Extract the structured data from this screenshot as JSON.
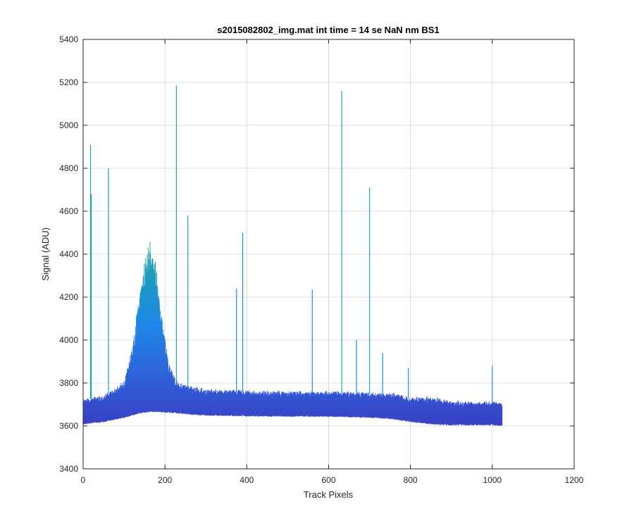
{
  "chart_data": {
    "type": "line",
    "title": "s2015082802_img.mat int time = 14 se  NaN nm BS1",
    "xlabel": "Track Pixels",
    "ylabel": "Signal (ADU)",
    "xlim": [
      0,
      1200
    ],
    "ylim": [
      3400,
      5400
    ],
    "xticks": [
      0,
      200,
      400,
      600,
      800,
      1000,
      1200
    ],
    "yticks": [
      3400,
      3600,
      3800,
      4000,
      4200,
      4400,
      4600,
      4800,
      5000,
      5200,
      5400
    ],
    "grid": true,
    "x_range": [
      1,
      1024
    ],
    "colors": {
      "series_low": "#3a3fc4",
      "series_mid": "#1e88e8",
      "series_high": "#1aa8a0",
      "grid": "#dcdcdc",
      "axis": "#262626"
    },
    "envelope": [
      {
        "x": 1,
        "low": 3615,
        "high": 3720
      },
      {
        "x": 50,
        "low": 3625,
        "high": 3735
      },
      {
        "x": 100,
        "low": 3645,
        "high": 3800
      },
      {
        "x": 120,
        "low": 3655,
        "high": 3960
      },
      {
        "x": 140,
        "low": 3665,
        "high": 4250
      },
      {
        "x": 155,
        "low": 3670,
        "high": 4420
      },
      {
        "x": 165,
        "low": 3672,
        "high": 4460
      },
      {
        "x": 180,
        "low": 3672,
        "high": 4350
      },
      {
        "x": 195,
        "low": 3670,
        "high": 4060
      },
      {
        "x": 210,
        "low": 3668,
        "high": 3880
      },
      {
        "x": 230,
        "low": 3665,
        "high": 3800
      },
      {
        "x": 260,
        "low": 3660,
        "high": 3780
      },
      {
        "x": 300,
        "low": 3655,
        "high": 3765
      },
      {
        "x": 400,
        "low": 3652,
        "high": 3760
      },
      {
        "x": 500,
        "low": 3650,
        "high": 3755
      },
      {
        "x": 600,
        "low": 3650,
        "high": 3755
      },
      {
        "x": 700,
        "low": 3645,
        "high": 3750
      },
      {
        "x": 760,
        "low": 3638,
        "high": 3745
      },
      {
        "x": 800,
        "low": 3625,
        "high": 3725
      },
      {
        "x": 850,
        "low": 3615,
        "high": 3730
      },
      {
        "x": 900,
        "low": 3610,
        "high": 3710
      },
      {
        "x": 1000,
        "low": 3610,
        "high": 3705
      },
      {
        "x": 1024,
        "low": 3608,
        "high": 3705
      }
    ],
    "spikes": [
      {
        "x": 18,
        "y": 4910
      },
      {
        "x": 20,
        "y": 4680
      },
      {
        "x": 62,
        "y": 4800
      },
      {
        "x": 228,
        "y": 5185
      },
      {
        "x": 256,
        "y": 4580
      },
      {
        "x": 375,
        "y": 4240
      },
      {
        "x": 390,
        "y": 4500
      },
      {
        "x": 560,
        "y": 4235
      },
      {
        "x": 632,
        "y": 5160
      },
      {
        "x": 668,
        "y": 4000
      },
      {
        "x": 700,
        "y": 4710
      },
      {
        "x": 732,
        "y": 3940
      },
      {
        "x": 795,
        "y": 3870
      },
      {
        "x": 1000,
        "y": 3880
      }
    ]
  }
}
